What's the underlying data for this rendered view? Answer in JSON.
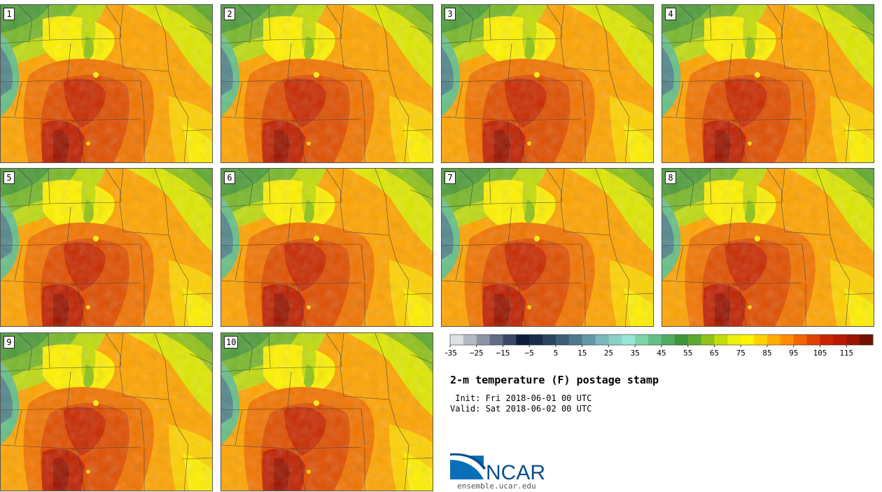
{
  "figure": {
    "title": "2-m temperature (F) postage stamp",
    "init": " Init: Fri 2018-06-01 00 UTC",
    "valid": "Valid: Sat 2018-06-02 00 UTC"
  },
  "members": [
    "1",
    "2",
    "3",
    "4",
    "5",
    "6",
    "7",
    "8",
    "9",
    "10"
  ],
  "colorbar": {
    "colors": [
      "#dde1e5",
      "#b4bac4",
      "#8b94a5",
      "#616c85",
      "#3a4668",
      "#0d1a3a",
      "#1a2c4c",
      "#2b4460",
      "#3d5e78",
      "#4e788c",
      "#6598a6",
      "#79b8bb",
      "#8bd0c6",
      "#95e6d4",
      "#80d3a9",
      "#66bf86",
      "#50aa62",
      "#3f9638",
      "#5ea82f",
      "#90c218",
      "#c4dd08",
      "#ecf00a",
      "#fff500",
      "#ffd200",
      "#ffac00",
      "#ff8a00",
      "#f26400",
      "#e04000",
      "#c92300",
      "#b81a00",
      "#9a1400",
      "#731100"
    ],
    "tick_labels": [
      "−35",
      "−25",
      "−15",
      "−5",
      "5",
      "15",
      "25",
      "35",
      "45",
      "55",
      "65",
      "75",
      "85",
      "95",
      "105",
      "115"
    ]
  },
  "logo": {
    "name": "NCAR",
    "url": "ensemble.ucar.edu"
  }
}
